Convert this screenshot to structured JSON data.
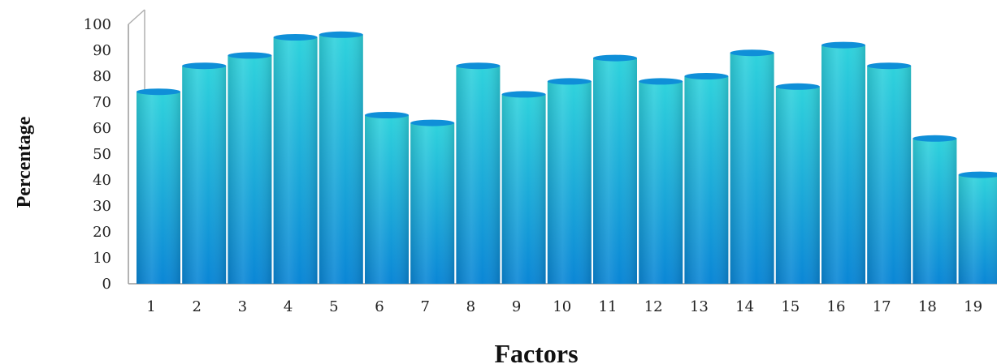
{
  "chart_data": {
    "type": "bar",
    "title": "",
    "xlabel": "Factors",
    "ylabel": "Percentage",
    "categories": [
      "1",
      "2",
      "3",
      "4",
      "5",
      "6",
      "7",
      "8",
      "9",
      "10",
      "11",
      "12",
      "13",
      "14",
      "15",
      "16",
      "17",
      "18",
      "19"
    ],
    "values": [
      74,
      84,
      88,
      95,
      96,
      65,
      62,
      84,
      73,
      78,
      87,
      78,
      80,
      89,
      76,
      92,
      84,
      56,
      42
    ],
    "yticks": [
      0,
      10,
      20,
      30,
      40,
      50,
      60,
      70,
      80,
      90,
      100
    ],
    "ylim": [
      0,
      100
    ],
    "grid": false,
    "legend": "none",
    "colors": {
      "bar_top": "#2fd3dc",
      "bar_bottom": "#0a86d6",
      "bar_cap": "#0f8fd8",
      "axis": "#9a9a9a"
    }
  }
}
